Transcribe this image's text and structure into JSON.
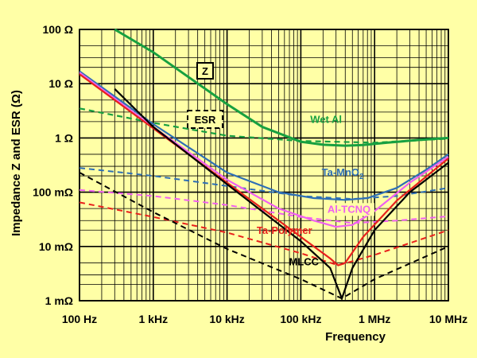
{
  "chart_data": {
    "type": "line",
    "xlabel": "Frequency",
    "ylabel": "Impedance  Z  and  ESR  (Ω)",
    "x_scale": "log",
    "y_scale": "log",
    "xlim": [
      100,
      10000000
    ],
    "ylim": [
      0.001,
      100
    ],
    "grid": true,
    "x_ticks": [
      {
        "value": 100,
        "label": "100 Hz"
      },
      {
        "value": 1000,
        "label": "1 kHz"
      },
      {
        "value": 10000,
        "label": "10 kHz"
      },
      {
        "value": 100000,
        "label": "100 kHz"
      },
      {
        "value": 1000000,
        "label": "1 MHz"
      },
      {
        "value": 10000000,
        "label": "10 MHz"
      }
    ],
    "y_ticks": [
      {
        "value": 100,
        "label": "100 Ω"
      },
      {
        "value": 10,
        "label": "10 Ω"
      },
      {
        "value": 1,
        "label": "1 Ω"
      },
      {
        "value": 0.1,
        "label": "100 mΩ"
      },
      {
        "value": 0.01,
        "label": "10 mΩ"
      },
      {
        "value": 0.001,
        "label": "1 mΩ"
      }
    ],
    "legend_boxes": [
      {
        "label": "Z",
        "line_style": "solid"
      },
      {
        "label": "ESR",
        "line_style": "dashed"
      }
    ],
    "colors": {
      "wet_al": "#17A040",
      "ta_mno2": "#2E6FB5",
      "al_tcnq": "#F060F0",
      "ta_polymer": "#E8201C",
      "mlcc": "#000000"
    },
    "series": [
      {
        "name": "Wet Al",
        "color": "#17A040",
        "impedance": [
          [
            300,
            100
          ],
          [
            1000,
            38
          ],
          [
            10000,
            4.2
          ],
          [
            30000,
            1.6
          ],
          [
            100000,
            0.85
          ],
          [
            200000,
            0.75
          ],
          [
            400000,
            0.72
          ],
          [
            700000,
            0.74
          ],
          [
            1500000,
            0.82
          ],
          [
            4000000,
            0.92
          ],
          [
            10000000,
            1.0
          ]
        ],
        "esr": [
          [
            100,
            3.5
          ],
          [
            1000,
            1.9
          ],
          [
            10000,
            1.1
          ],
          [
            100000,
            0.88
          ],
          [
            1000000,
            0.82
          ],
          [
            10000000,
            0.97
          ]
        ]
      },
      {
        "name": "Ta-MnO2",
        "color": "#2E6FB5",
        "impedance": [
          [
            100,
            17
          ],
          [
            1000,
            1.8
          ],
          [
            10000,
            0.23
          ],
          [
            50000,
            0.1
          ],
          [
            150000,
            0.078
          ],
          [
            400000,
            0.072
          ],
          [
            800000,
            0.078
          ],
          [
            2000000,
            0.12
          ],
          [
            5000000,
            0.26
          ],
          [
            10000000,
            0.5
          ]
        ],
        "esr": [
          [
            100,
            0.28
          ],
          [
            1000,
            0.2
          ],
          [
            10000,
            0.13
          ],
          [
            100000,
            0.085
          ],
          [
            500000,
            0.075
          ],
          [
            2000000,
            0.085
          ],
          [
            10000000,
            0.12
          ]
        ]
      },
      {
        "name": "Al-TCNQ",
        "color": "#F060F0",
        "impedance": [
          [
            100,
            16
          ],
          [
            1000,
            1.6
          ],
          [
            10000,
            0.17
          ],
          [
            50000,
            0.05
          ],
          [
            150000,
            0.03
          ],
          [
            300000,
            0.023
          ],
          [
            500000,
            0.025
          ],
          [
            1000000,
            0.045
          ],
          [
            3000000,
            0.15
          ],
          [
            10000000,
            0.45
          ]
        ],
        "esr": [
          [
            100,
            0.11
          ],
          [
            1000,
            0.085
          ],
          [
            10000,
            0.058
          ],
          [
            100000,
            0.035
          ],
          [
            500000,
            0.027
          ],
          [
            2000000,
            0.03
          ],
          [
            10000000,
            0.036
          ]
        ]
      },
      {
        "name": "Ta-Polymer",
        "color": "#E8201C",
        "impedance": [
          [
            100,
            15
          ],
          [
            1000,
            1.5
          ],
          [
            10000,
            0.15
          ],
          [
            100000,
            0.015
          ],
          [
            250000,
            0.006
          ],
          [
            320000,
            0.0045
          ],
          [
            400000,
            0.005
          ],
          [
            700000,
            0.015
          ],
          [
            2000000,
            0.07
          ],
          [
            10000000,
            0.42
          ]
        ],
        "esr": [
          [
            100,
            0.065
          ],
          [
            1000,
            0.035
          ],
          [
            10000,
            0.018
          ],
          [
            100000,
            0.0075
          ],
          [
            320000,
            0.0045
          ],
          [
            1000000,
            0.007
          ],
          [
            10000000,
            0.02
          ]
        ]
      },
      {
        "name": "MLCC",
        "color": "#000000",
        "impedance": [
          [
            300,
            8
          ],
          [
            1000,
            1.6
          ],
          [
            10000,
            0.14
          ],
          [
            100000,
            0.0125
          ],
          [
            250000,
            0.004
          ],
          [
            360000,
            0.0011
          ],
          [
            500000,
            0.004
          ],
          [
            1000000,
            0.02
          ],
          [
            3000000,
            0.1
          ],
          [
            10000000,
            0.35
          ]
        ],
        "esr": [
          [
            100,
            0.23
          ],
          [
            1000,
            0.043
          ],
          [
            10000,
            0.009
          ],
          [
            100000,
            0.0025
          ],
          [
            360000,
            0.0011
          ],
          [
            1000000,
            0.0025
          ],
          [
            10000000,
            0.01
          ]
        ]
      }
    ]
  }
}
